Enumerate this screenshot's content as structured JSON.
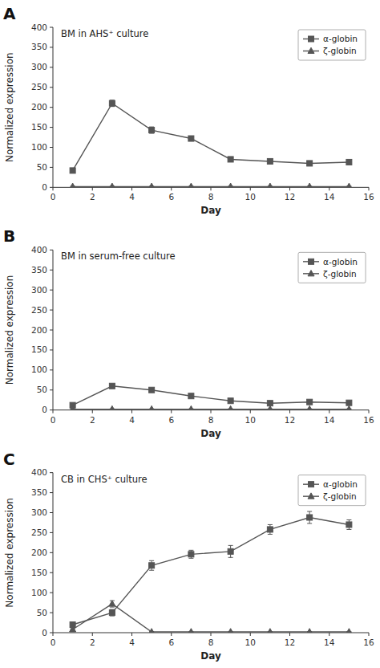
{
  "chart_data": [
    {
      "type": "line",
      "title": "BM in AHS⁺ culture",
      "annotations": [
        "A"
      ],
      "xlabel": "Day",
      "ylabel": "Normalized expression",
      "x": [
        1,
        3,
        5,
        7,
        9,
        11,
        13,
        15
      ],
      "series": [
        {
          "name": "α-globin",
          "color": "#555555",
          "marker": "square",
          "values": [
            42,
            210,
            143,
            122,
            70,
            65,
            60,
            63
          ],
          "errors": [
            5,
            8,
            8,
            6,
            6,
            5,
            5,
            4
          ]
        },
        {
          "name": "ζ-globin",
          "color": "#555555",
          "marker": "triangle",
          "values": [
            2,
            2,
            2,
            2,
            2,
            2,
            2,
            2
          ],
          "errors": [
            1,
            1,
            1,
            1,
            1,
            1,
            1,
            1
          ]
        }
      ],
      "xlim": [
        0,
        16
      ],
      "xticks": [
        0,
        2,
        4,
        6,
        8,
        10,
        12,
        14,
        16
      ],
      "ylim": [
        0,
        400
      ],
      "yticks": [
        0,
        50,
        100,
        150,
        200,
        250,
        300,
        350,
        400
      ],
      "legend": "upper right",
      "grid": false
    },
    {
      "type": "line",
      "title": "BM in serum-free culture",
      "annotations": [
        "B"
      ],
      "xlabel": "Day",
      "ylabel": "Normalized expression",
      "x": [
        1,
        3,
        5,
        7,
        9,
        11,
        13,
        15
      ],
      "series": [
        {
          "name": "α-globin",
          "color": "#555555",
          "marker": "square",
          "values": [
            12,
            60,
            50,
            35,
            23,
            17,
            20,
            18
          ],
          "errors": [
            3,
            5,
            5,
            4,
            3,
            2,
            3,
            3
          ]
        },
        {
          "name": "ζ-globin",
          "color": "#555555",
          "marker": "triangle",
          "values": [
            2,
            2,
            2,
            2,
            2,
            2,
            2,
            2
          ],
          "errors": [
            1,
            1,
            1,
            1,
            1,
            1,
            1,
            1
          ]
        }
      ],
      "xlim": [
        0,
        16
      ],
      "xticks": [
        0,
        2,
        4,
        6,
        8,
        10,
        12,
        14,
        16
      ],
      "ylim": [
        0,
        400
      ],
      "yticks": [
        0,
        50,
        100,
        150,
        200,
        250,
        300,
        350,
        400
      ],
      "legend": "upper right",
      "grid": false
    },
    {
      "type": "line",
      "title": "CB in CHS⁺ culture",
      "annotations": [
        "C"
      ],
      "xlabel": "Day",
      "ylabel": "Normalized expression",
      "x": [
        1,
        3,
        5,
        7,
        9,
        11,
        13,
        15
      ],
      "series": [
        {
          "name": "α-globin",
          "color": "#555555",
          "marker": "square",
          "values": [
            20,
            50,
            168,
            196,
            203,
            258,
            288,
            270
          ],
          "errors": [
            4,
            8,
            12,
            10,
            15,
            12,
            15,
            12
          ]
        },
        {
          "name": "ζ-globin",
          "color": "#555555",
          "marker": "triangle",
          "values": [
            8,
            72,
            2,
            2,
            2,
            2,
            2,
            2
          ],
          "errors": [
            2,
            8,
            1,
            1,
            1,
            1,
            1,
            1
          ]
        }
      ],
      "xlim": [
        0,
        16
      ],
      "xticks": [
        0,
        2,
        4,
        6,
        8,
        10,
        12,
        14,
        16
      ],
      "ylim": [
        0,
        400
      ],
      "yticks": [
        0,
        50,
        100,
        150,
        200,
        250,
        300,
        350,
        400
      ],
      "legend": "upper right",
      "grid": false
    }
  ]
}
